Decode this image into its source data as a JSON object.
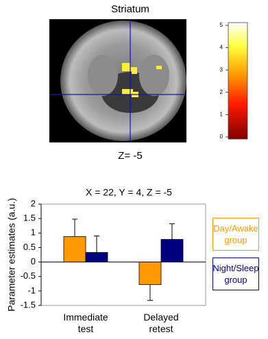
{
  "chart_data": [
    {
      "type": "brain-map",
      "title": "Striatum",
      "caption": "Z= -5",
      "clim": [
        0,
        5
      ],
      "cticks": [
        0,
        1,
        2,
        3,
        4,
        5
      ]
    },
    {
      "type": "bar",
      "title": "X = 22, Y = 4, Z = -5",
      "y_label": "Parameter estimates (a.u.)",
      "categories": [
        "Immediate test",
        "Delayed retest"
      ],
      "series": [
        {
          "name": "Day/Awake group",
          "color": "#ff9900",
          "values": [
            0.88,
            -0.78
          ],
          "errors": [
            0.6,
            0.55
          ]
        },
        {
          "name": "Night/Sleep group",
          "color": "#000080",
          "values": [
            0.33,
            0.78
          ],
          "errors": [
            0.57,
            0.54
          ]
        }
      ],
      "ylim": [
        -1.5,
        2
      ],
      "yticks": [
        -1.5,
        -1,
        -0.5,
        0,
        0.5,
        1,
        1.5,
        2
      ],
      "legend": "right"
    }
  ]
}
